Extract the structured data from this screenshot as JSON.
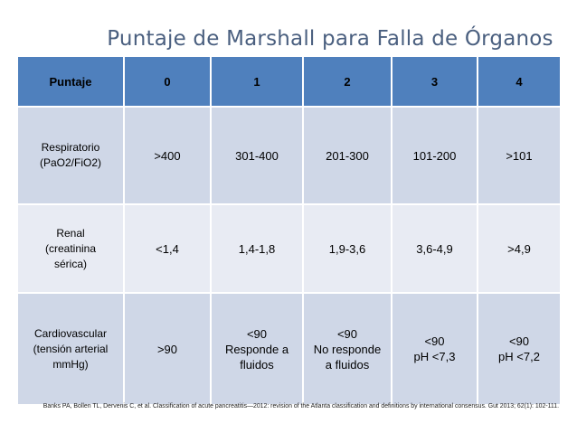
{
  "slide": {
    "title": "Puntaje de Marshall para Falla de Órganos"
  },
  "table": {
    "headers": [
      "Puntaje",
      "0",
      "1",
      "2",
      "3",
      "4"
    ],
    "rows": [
      {
        "organ": "Respiratorio\n(PaO2/FiO2)",
        "cells": [
          ">400",
          "301-400",
          "201-300",
          "101-200",
          ">101"
        ]
      },
      {
        "organ": "Renal\n(creatinina\nsérica)",
        "cells": [
          "<1,4",
          "1,4-1,8",
          "1,9-3,6",
          "3,6-4,9",
          ">4,9"
        ]
      },
      {
        "organ": "Cardiovascular\n(tensión arterial\nmmHg)",
        "cells": [
          ">90",
          "<90\nResponde a\nfluidos",
          "<90\nNo responde\na fluidos",
          "<90\npH <7,3",
          "<90\npH <7,2"
        ]
      }
    ]
  },
  "citation": "Banks PA, Bollen TL, Dervenis C, et al. Classification of acute pancreatitis—2012: revision of the Atlanta classification and definitions by international consensus. Gut 2013; 62(1): 102-111.",
  "colors": {
    "header_fill": "#4f80bd",
    "row_fill_dark": "#cfd7e7",
    "row_fill_light": "#e8ebf3",
    "title_text": "#4a5f7f"
  }
}
